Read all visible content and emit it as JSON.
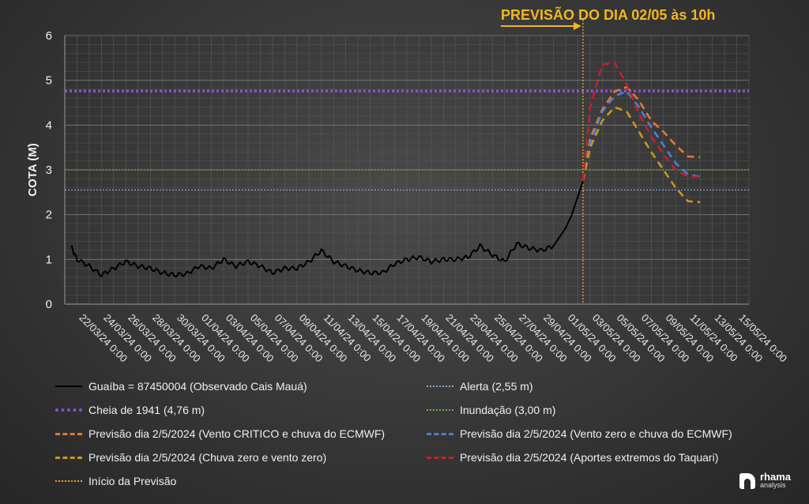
{
  "chart_data": {
    "type": "line",
    "title": "PREVISÃO DO DIA 02/05 às 10h",
    "ylabel": "COTA (M)",
    "xlabel": "",
    "ylim": [
      0,
      6
    ],
    "yticks": [
      0,
      1,
      2,
      3,
      4,
      5,
      6
    ],
    "xlim": [
      "2024-03-21",
      "2024-05-16"
    ],
    "xtick_labels": [
      "22/03/24 0:00",
      "24/03/24 0:00",
      "26/03/24 0:00",
      "28/03/24 0:00",
      "30/03/24 0:00",
      "01/04/24 0:00",
      "03/04/24 0:00",
      "05/04/24 0:00",
      "07/04/24 0:00",
      "09/04/24 0:00",
      "11/04/24 0:00",
      "13/04/24 0:00",
      "15/04/24 0:00",
      "17/04/24 0:00",
      "19/04/24 0:00",
      "21/04/24 0:00",
      "23/04/24 0:00",
      "25/04/24 0:00",
      "27/04/24 0:00",
      "29/04/24 0:00",
      "01/05/24 0:00",
      "03/05/24 0:00",
      "05/05/24 0:00",
      "07/05/24 0:00",
      "09/05/24 0:00",
      "11/05/24 0:00",
      "13/05/24 0:00",
      "15/05/24 0:00"
    ],
    "forecast_start": "2024-05-02 10:00",
    "grid": true,
    "legend_position": "bottom",
    "observed": {
      "name": "Guaíba = 87450004 (Observado Cais Mauá)",
      "color": "#000000",
      "x": [
        "2024-03-21 12:00",
        "2024-03-22",
        "2024-03-23",
        "2024-03-24",
        "2024-03-25",
        "2024-03-26",
        "2024-03-27",
        "2024-03-28",
        "2024-03-29",
        "2024-03-30",
        "2024-03-31",
        "2024-04-01",
        "2024-04-02",
        "2024-04-03",
        "2024-04-04",
        "2024-04-05",
        "2024-04-06",
        "2024-04-07",
        "2024-04-08",
        "2024-04-09",
        "2024-04-10",
        "2024-04-11",
        "2024-04-12",
        "2024-04-13",
        "2024-04-14",
        "2024-04-15",
        "2024-04-16",
        "2024-04-17",
        "2024-04-18",
        "2024-04-19",
        "2024-04-20",
        "2024-04-21",
        "2024-04-22",
        "2024-04-23",
        "2024-04-24",
        "2024-04-25",
        "2024-04-26",
        "2024-04-27",
        "2024-04-28",
        "2024-04-29",
        "2024-04-30",
        "2024-05-01",
        "2024-05-01 12:00",
        "2024-05-02",
        "2024-05-02 10:00"
      ],
      "y": [
        1.3,
        1.0,
        0.85,
        0.65,
        0.8,
        0.95,
        0.85,
        0.8,
        0.7,
        0.65,
        0.68,
        0.85,
        0.8,
        1.0,
        0.85,
        0.95,
        0.85,
        0.7,
        0.8,
        0.8,
        0.95,
        1.2,
        0.95,
        0.85,
        0.75,
        0.7,
        0.7,
        0.9,
        1.0,
        1.05,
        0.95,
        1.0,
        1.0,
        1.05,
        1.3,
        1.1,
        0.95,
        1.35,
        1.25,
        1.2,
        1.3,
        1.7,
        2.0,
        2.4,
        2.75
      ]
    },
    "series": [
      {
        "name": "Previsão dia 2/5/2024 (Vento CRITICO e chuva do ECMWF)",
        "color": "#e8772e",
        "x": [
          "2024-05-02 10:00",
          "2024-05-03",
          "2024-05-04",
          "2024-05-05",
          "2024-05-06",
          "2024-05-07",
          "2024-05-08",
          "2024-05-09",
          "2024-05-10",
          "2024-05-11",
          "2024-05-12"
        ],
        "y": [
          2.75,
          3.7,
          4.35,
          4.75,
          4.85,
          4.55,
          4.1,
          3.85,
          3.55,
          3.3,
          3.28
        ]
      },
      {
        "name": "Previsão dia 2/5/2024 (Vento zero e chuva do ECMWF)",
        "color": "#4a7fd6",
        "x": [
          "2024-05-02 10:00",
          "2024-05-03",
          "2024-05-04",
          "2024-05-05",
          "2024-05-06",
          "2024-05-07",
          "2024-05-08",
          "2024-05-09",
          "2024-05-10",
          "2024-05-11",
          "2024-05-12"
        ],
        "y": [
          2.75,
          3.6,
          4.3,
          4.65,
          4.75,
          4.4,
          3.95,
          3.55,
          3.15,
          2.9,
          2.85
        ]
      },
      {
        "name": "Previsão dia 2/5/2024 (Chuva zero e vento zero)",
        "color": "#c8981e",
        "x": [
          "2024-05-02 10:00",
          "2024-05-03",
          "2024-05-04",
          "2024-05-05",
          "2024-05-06",
          "2024-05-07",
          "2024-05-08",
          "2024-05-09",
          "2024-05-10",
          "2024-05-11",
          "2024-05-12"
        ],
        "y": [
          2.75,
          3.5,
          4.1,
          4.4,
          4.3,
          3.85,
          3.4,
          3.0,
          2.6,
          2.3,
          2.28
        ]
      },
      {
        "name": "Previsão dia 2/5/2024 (Aportes extremos do Taquari)",
        "color": "#c8202a",
        "x": [
          "2024-05-02 10:00",
          "2024-05-03",
          "2024-05-04",
          "2024-05-05",
          "2024-05-06",
          "2024-05-07",
          "2024-05-08",
          "2024-05-09",
          "2024-05-10",
          "2024-05-11",
          "2024-05-12"
        ],
        "y": [
          2.75,
          4.4,
          5.35,
          5.4,
          4.9,
          4.25,
          3.75,
          3.35,
          3.0,
          2.85,
          2.85
        ]
      }
    ],
    "reference_lines": [
      {
        "name": "Alerta  (2,55 m)",
        "value": 2.55,
        "color": "#8aa6d8"
      },
      {
        "name": "Cheia de 1941 (4,76 m)",
        "value": 4.76,
        "color": "#8a4fd8"
      },
      {
        "name": "Inundação  (3,00 m)",
        "value": 3.0,
        "color": "#6fae3a"
      }
    ],
    "forecast_marker_name": "Início da Previsão",
    "forecast_marker_color": "#e8b020"
  },
  "legend": [
    {
      "label": "Guaíba = 87450004 (Observado Cais Mauá)",
      "color": "#000000",
      "style": "solid"
    },
    {
      "label": "Alerta  (2,55 m)",
      "color": "#8aa6d8",
      "style": "dotted"
    },
    {
      "label": "Cheia de 1941 (4,76 m)",
      "color": "#8a4fd8",
      "style": "dotted-thick"
    },
    {
      "label": "Inundação  (3,00 m)",
      "color": "#6fae3a",
      "style": "dotted"
    },
    {
      "label": "Previsão dia 2/5/2024 (Vento CRITICO e chuva do ECMWF)",
      "color": "#e8772e",
      "style": "dashed"
    },
    {
      "label": "Previsão dia 2/5/2024 (Vento zero e chuva do ECMWF)",
      "color": "#4a7fd6",
      "style": "dashed"
    },
    {
      "label": "Previsão dia 2/5/2024 (Chuva zero e vento zero)",
      "color": "#c8981e",
      "style": "dashed"
    },
    {
      "label": "Previsão dia 2/5/2024 (Aportes extremos do Taquari)",
      "color": "#c8202a",
      "style": "dashed"
    },
    {
      "label": "Início da Previsão",
      "color": "#e8b020",
      "style": "dotted"
    }
  ],
  "brand": {
    "name": "rhama",
    "sub": "analysis"
  }
}
